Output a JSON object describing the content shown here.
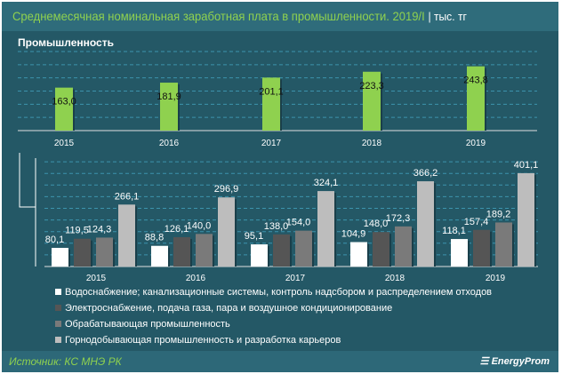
{
  "title": "Среднемесячная номинальная заработная плата в промышленности. 2019/I",
  "unit": "| тыс. тг",
  "subtitle": "Промышленность",
  "source": "Источник: КС МНЭ РК",
  "logo": "EnergyProm",
  "chart_data": [
    {
      "type": "bar",
      "title": "Промышленность",
      "categories": [
        "2015",
        "2016",
        "2017",
        "2018",
        "2019"
      ],
      "values": [
        163.0,
        181.9,
        201.1,
        223.3,
        243.8
      ],
      "labels": [
        "163,0",
        "181,9",
        "201,1",
        "223,3",
        "243,8"
      ],
      "ylim": [
        0,
        300
      ],
      "grid": true,
      "color": "#8fd14f"
    },
    {
      "type": "bar",
      "categories": [
        "2015",
        "2016",
        "2017",
        "2018",
        "2019"
      ],
      "ylim": [
        0,
        450
      ],
      "grid": true,
      "legend": "bottom",
      "series": [
        {
          "name": "Водоснабжение; канализационные системы, контроль надсбором и распределением отходов",
          "color": "#ffffff",
          "values": [
            80.1,
            88.8,
            95.1,
            104.9,
            118.1
          ],
          "labels": [
            "80,1",
            "88,8",
            "95,1",
            "104,9",
            "118,1"
          ]
        },
        {
          "name": "Электроснабжение, подача газа, пара и воздушное кондиционирование",
          "color": "#555555",
          "values": [
            119.5,
            126.1,
            138.0,
            148.0,
            157.4
          ],
          "labels": [
            "119,5",
            "126,1",
            "138,0",
            "148,0",
            "157,4"
          ]
        },
        {
          "name": "Обрабатывающая промышленность",
          "color": "#7a7a7a",
          "values": [
            124.3,
            140.0,
            154.0,
            172.3,
            189.2
          ],
          "labels": [
            "124,3",
            "140,0",
            "154,0",
            "172,3",
            "189,2"
          ]
        },
        {
          "name": "Горнодобывающая промышленность и разработка карьеров",
          "color": "#bdbdbd",
          "values": [
            266.1,
            296.9,
            324.1,
            366.2,
            401.1
          ],
          "labels": [
            "266,1",
            "296,9",
            "324,1",
            "366,2",
            "401,1"
          ]
        }
      ]
    }
  ]
}
